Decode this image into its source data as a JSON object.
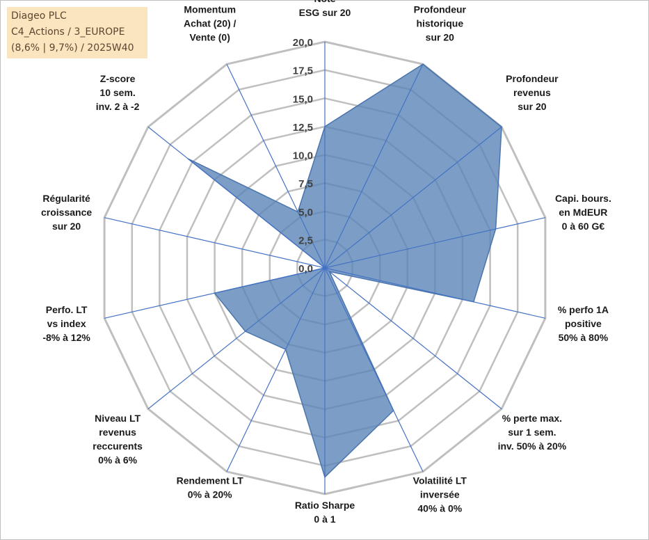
{
  "info": {
    "line1": "Diageo PLC",
    "line2": "C4_Actions / 3_EUROPE",
    "line3": "(8,6% | 9,7%) / 2025W40"
  },
  "chart_data": {
    "type": "radar",
    "title": "",
    "rmin": 0,
    "rmax": 20,
    "tick_step": 2.5,
    "grid_levels": 8,
    "ticks": [
      "0,0",
      "2,5",
      "5,0",
      "7,5",
      "10,0",
      "12,5",
      "15,0",
      "17,5",
      "20,0"
    ],
    "axes": [
      {
        "label": [
          "Note",
          "ESG sur 20"
        ]
      },
      {
        "label": [
          "Profondeur",
          "historique",
          "sur 20"
        ]
      },
      {
        "label": [
          "Profondeur",
          "revenus",
          "sur 20"
        ]
      },
      {
        "label": [
          "Capi. bours.",
          "en MdEUR",
          "0 à 60 G€"
        ]
      },
      {
        "label": [
          "% perfo 1A",
          "positive",
          "50% à 80%"
        ]
      },
      {
        "label": [
          "% perte max.",
          "sur 1 sem.",
          "inv. 50% à 20%"
        ]
      },
      {
        "label": [
          "Volatilité LT",
          "inversée",
          "40% à 0%"
        ]
      },
      {
        "label": [
          "Ratio Sharpe",
          "0 à 1"
        ]
      },
      {
        "label": [
          "Rendement LT",
          "0% à 20%"
        ]
      },
      {
        "label": [
          "Niveau LT",
          "revenus",
          "reccurents",
          "0% à 6%"
        ]
      },
      {
        "label": [
          "Perfo. LT",
          "vs index",
          "-8% à 12%"
        ]
      },
      {
        "label": [
          "Régularité",
          "croissance",
          "sur 20"
        ]
      },
      {
        "label": [
          "Z-score",
          "10 sem.",
          "inv. 2 à -2"
        ]
      },
      {
        "label": [
          "Momentum",
          "Achat (20) /",
          "Vente (0)"
        ]
      }
    ],
    "series": [
      {
        "values": [
          12.5,
          20,
          20,
          15.5,
          13.5,
          0.5,
          14,
          18.5,
          8,
          9,
          10,
          0,
          15.5,
          5.5
        ]
      }
    ],
    "colors": {
      "fill": "#5b86b8",
      "fill_opacity": 0.8,
      "stroke": "#4a74ad",
      "axis": "#4472c4",
      "grid": "#bfbfbf"
    }
  }
}
